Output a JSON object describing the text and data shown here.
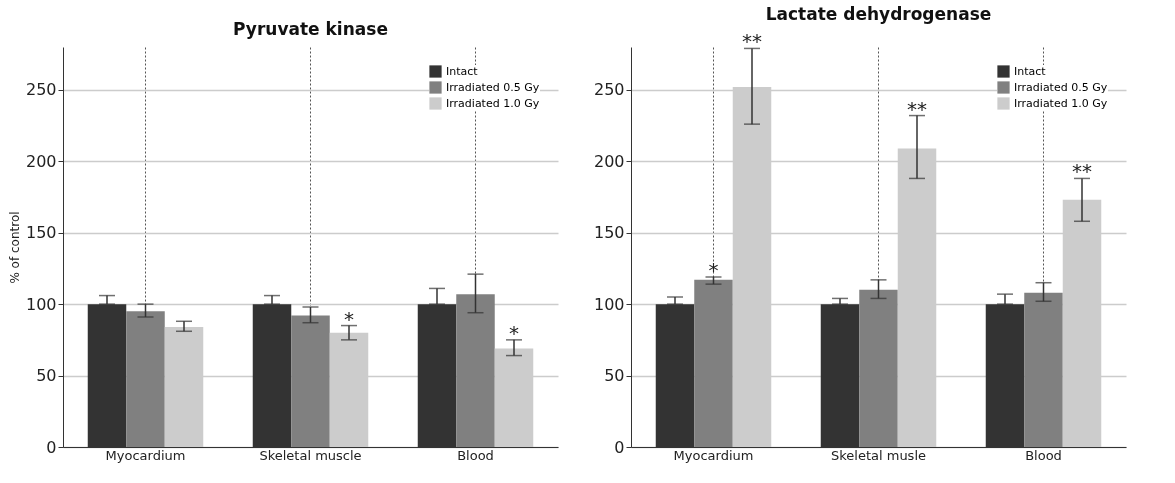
{
  "chart_data": [
    {
      "type": "bar",
      "title": "Pyruvate kinase",
      "ylabel": "% of control",
      "categories": [
        "Myocardium",
        "Skeletal muscle",
        "Blood"
      ],
      "ylim": [
        0,
        280
      ],
      "yticks": [
        0,
        50,
        100,
        150,
        200,
        250
      ],
      "grid": true,
      "legend": "top right",
      "series": [
        {
          "name": "Intact",
          "color": "#333333",
          "values": [
            100,
            100,
            100
          ],
          "errors": [
            [
              100,
              106
            ],
            [
              100,
              106
            ],
            [
              100,
              111
            ]
          ]
        },
        {
          "name": "Irradiated 0.5 Gy",
          "color": "#808080",
          "values": [
            95,
            92,
            107
          ],
          "errors": [
            [
              91,
              100
            ],
            [
              87,
              98
            ],
            [
              94,
              121
            ]
          ]
        },
        {
          "name": "Irradiated 1.0 Gy",
          "color": "#cccccc",
          "values": [
            84,
            80,
            69
          ],
          "errors": [
            [
              81,
              88
            ],
            [
              75,
              85
            ],
            [
              64,
              75
            ]
          ],
          "value_labels": [
            null,
            "*",
            "*"
          ]
        }
      ]
    },
    {
      "type": "bar",
      "title": "Lactate dehydrogenase",
      "categories": [
        "Myocardium",
        "Skeletal musle",
        "Blood"
      ],
      "ylim": [
        0,
        280
      ],
      "yticks": [
        0,
        50,
        100,
        150,
        200,
        250
      ],
      "grid": true,
      "legend": "top right",
      "series": [
        {
          "name": "Intact",
          "color": "#333333",
          "values": [
            100,
            100,
            100
          ],
          "errors": [
            [
              100,
              105
            ],
            [
              100,
              104
            ],
            [
              100,
              107
            ]
          ]
        },
        {
          "name": "Irradiated 0.5 Gy",
          "color": "#808080",
          "values": [
            117,
            110,
            108
          ],
          "errors": [
            [
              114,
              119
            ],
            [
              104,
              117
            ],
            [
              102,
              115
            ]
          ],
          "value_labels": [
            "*",
            null,
            null
          ]
        },
        {
          "name": "Irradiated 1.0 Gy",
          "color": "#cccccc",
          "values": [
            252,
            209,
            173
          ],
          "errors": [
            [
              226,
              279
            ],
            [
              188,
              232
            ],
            [
              158,
              188
            ]
          ],
          "value_labels": [
            "**",
            "**",
            "**"
          ]
        }
      ]
    }
  ]
}
